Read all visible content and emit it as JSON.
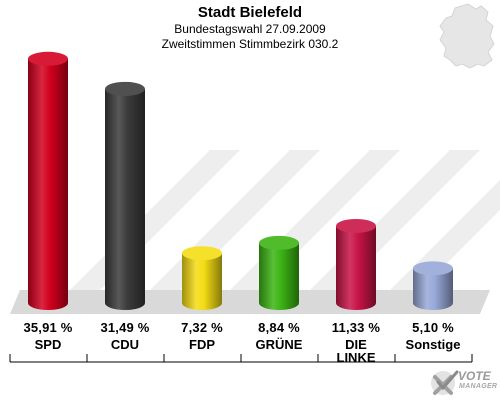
{
  "header": {
    "title": "Stadt Bielefeld",
    "subtitle1": "Bundestagswahl 27.09.2009",
    "subtitle2": "Zweitstimmen Stimmbezirk 030.2"
  },
  "chart_data": {
    "type": "bar",
    "title": "Stadt Bielefeld",
    "ylim": [
      0,
      40
    ],
    "categories": [
      "SPD",
      "CDU",
      "FDP",
      "GRÜNE",
      "DIE LINKE",
      "Sonstige"
    ],
    "values": [
      35.91,
      31.49,
      7.32,
      8.84,
      11.33,
      5.1
    ],
    "value_labels": [
      "35,91 %",
      "31,49 %",
      "7,32 %",
      "8,84 %",
      "11,33 %",
      "5,10 %"
    ],
    "colors": [
      "#d2001e",
      "#3c3c3c",
      "#f4dc14",
      "#3cb414",
      "#c81446",
      "#98a8d8"
    ]
  },
  "labels": {
    "pct": [
      "35,91 %",
      "31,49 %",
      "7,32 %",
      "8,84 %",
      "11,33 %",
      "5,10 %"
    ],
    "cat": [
      "SPD",
      "CDU",
      "FDP",
      "GRÜNE",
      "DIE\nLINKE",
      "Sonstige"
    ]
  },
  "brand": {
    "name": "VOTE",
    "sub": "MANAGER",
    "icon": "checkmark-x-icon"
  },
  "decor": {
    "map_icon": "germany-map-icon"
  }
}
